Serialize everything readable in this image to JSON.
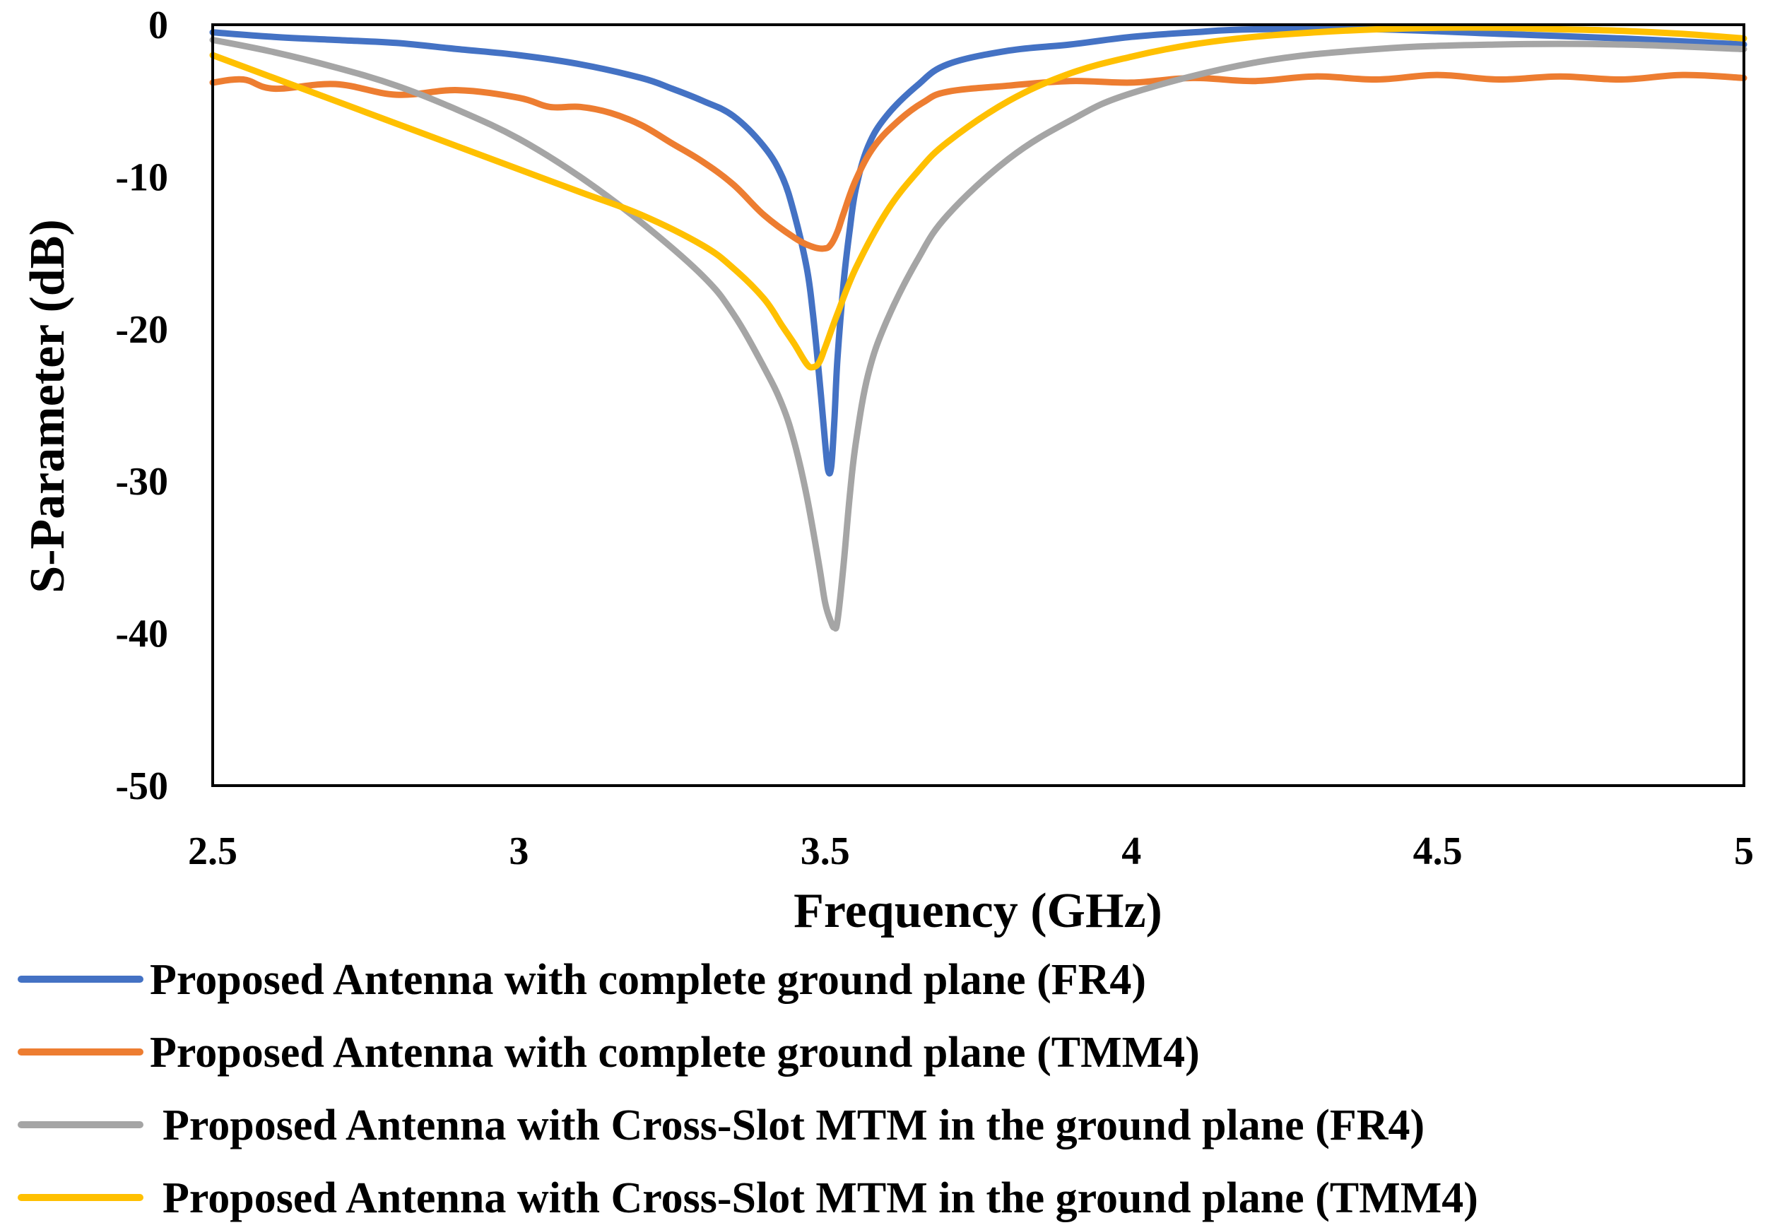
{
  "chart_data": {
    "type": "line",
    "title": "",
    "xlabel": "Frequency (GHz)",
    "ylabel": "S-Parameter (dB)",
    "xlim": [
      2.5,
      5
    ],
    "ylim": [
      -50,
      0
    ],
    "xticks": [
      "2.5",
      "3",
      "3.5",
      "4",
      "4.5",
      "5"
    ],
    "yticks": [
      "0",
      "-10",
      "-20",
      "-30",
      "-40",
      "-50"
    ],
    "xtick_values": [
      2.5,
      3,
      3.5,
      4,
      4.5,
      5
    ],
    "ytick_values": [
      0,
      -10,
      -20,
      -30,
      -40,
      -50
    ],
    "grid": false,
    "legend_position": "bottom",
    "series": [
      {
        "name": "Proposed Antenna with complete ground plane (FR4)",
        "color": "#4472C4",
        "x": [
          2.5,
          2.6,
          2.7,
          2.8,
          2.9,
          3.0,
          3.1,
          3.2,
          3.25,
          3.3,
          3.35,
          3.4,
          3.43,
          3.45,
          3.47,
          3.48,
          3.49,
          3.5,
          3.505,
          3.51,
          3.515,
          3.52,
          3.53,
          3.54,
          3.55,
          3.57,
          3.6,
          3.65,
          3.7,
          3.8,
          3.9,
          4.0,
          4.1,
          4.2,
          4.4,
          4.6,
          4.8,
          5.0
        ],
        "y": [
          -0.5,
          -0.8,
          -1.0,
          -1.2,
          -1.6,
          -2.0,
          -2.6,
          -3.5,
          -4.2,
          -5.0,
          -6.0,
          -8.0,
          -10.0,
          -12.5,
          -16.0,
          -19.0,
          -23.0,
          -27.5,
          -29.3,
          -29.0,
          -26.0,
          -22.0,
          -17.0,
          -13.5,
          -10.8,
          -8.0,
          -6.0,
          -4.0,
          -2.6,
          -1.7,
          -1.3,
          -0.8,
          -0.5,
          -0.3,
          -0.3,
          -0.6,
          -0.9,
          -1.3
        ]
      },
      {
        "name": "Proposed Antenna with complete ground plane (TMM4)",
        "color": "#ED7D31",
        "x": [
          2.5,
          2.55,
          2.6,
          2.7,
          2.8,
          2.9,
          3.0,
          3.05,
          3.1,
          3.15,
          3.2,
          3.25,
          3.3,
          3.35,
          3.4,
          3.45,
          3.48,
          3.5,
          3.51,
          3.52,
          3.53,
          3.55,
          3.58,
          3.62,
          3.66,
          3.7,
          3.8,
          3.9,
          4.0,
          4.1,
          4.2,
          4.3,
          4.4,
          4.5,
          4.6,
          4.7,
          4.8,
          4.9,
          5.0
        ],
        "y": [
          -3.8,
          -3.6,
          -4.2,
          -3.9,
          -4.6,
          -4.3,
          -4.8,
          -5.4,
          -5.4,
          -5.8,
          -6.6,
          -7.8,
          -9.0,
          -10.5,
          -12.5,
          -14.0,
          -14.6,
          -14.7,
          -14.4,
          -13.6,
          -12.4,
          -10.2,
          -8.0,
          -6.3,
          -5.1,
          -4.4,
          -4.0,
          -3.7,
          -3.8,
          -3.5,
          -3.7,
          -3.4,
          -3.6,
          -3.3,
          -3.6,
          -3.4,
          -3.6,
          -3.3,
          -3.5
        ]
      },
      {
        "name": "Proposed Antenna with Cross-Slot MTM in the ground plane (FR4)",
        "color": "#A5A5A5",
        "x": [
          2.5,
          2.6,
          2.7,
          2.8,
          2.9,
          3.0,
          3.1,
          3.2,
          3.3,
          3.35,
          3.4,
          3.43,
          3.45,
          3.47,
          3.49,
          3.5,
          3.51,
          3.515,
          3.52,
          3.53,
          3.54,
          3.55,
          3.57,
          3.6,
          3.65,
          3.7,
          3.8,
          3.9,
          4.0,
          4.2,
          4.4,
          4.6,
          4.8,
          5.0
        ],
        "y": [
          -1.0,
          -1.8,
          -2.8,
          -4.0,
          -5.6,
          -7.5,
          -10.0,
          -13.0,
          -16.5,
          -19.0,
          -22.5,
          -25.0,
          -27.5,
          -31.0,
          -35.5,
          -38.0,
          -39.3,
          -39.6,
          -39.2,
          -35.5,
          -31.0,
          -27.5,
          -23.0,
          -19.5,
          -15.5,
          -12.5,
          -8.8,
          -6.3,
          -4.5,
          -2.5,
          -1.6,
          -1.3,
          -1.3,
          -1.6
        ]
      },
      {
        "name": "Proposed Antenna with Cross-Slot MTM in the ground plane (TMM4)",
        "color": "#FFC000",
        "x": [
          2.5,
          2.6,
          2.7,
          2.8,
          2.9,
          3.0,
          3.1,
          3.2,
          3.3,
          3.35,
          3.4,
          3.43,
          3.45,
          3.47,
          3.48,
          3.49,
          3.5,
          3.52,
          3.55,
          3.6,
          3.65,
          3.7,
          3.8,
          3.9,
          4.0,
          4.1,
          4.2,
          4.3,
          4.4,
          4.5,
          4.6,
          4.7,
          4.8,
          4.9,
          5.0
        ],
        "y": [
          -2.0,
          -3.5,
          -5.0,
          -6.5,
          -8.0,
          -9.5,
          -11.0,
          -12.5,
          -14.5,
          -16.0,
          -18.0,
          -19.8,
          -21.0,
          -22.3,
          -22.5,
          -22.2,
          -21.2,
          -19.0,
          -16.0,
          -12.3,
          -9.7,
          -7.7,
          -5.0,
          -3.2,
          -2.1,
          -1.3,
          -0.8,
          -0.5,
          -0.3,
          -0.2,
          -0.2,
          -0.3,
          -0.4,
          -0.6,
          -0.9
        ]
      }
    ]
  }
}
